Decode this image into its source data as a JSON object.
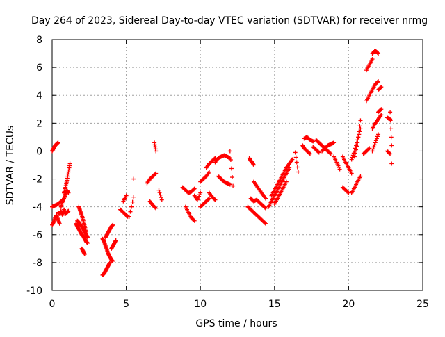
{
  "chart_data": {
    "type": "scatter",
    "title": "Day 264 of 2023, Sidereal Day-to-day VTEC variation (SDTVAR) for receiver nrmg",
    "xlabel": "GPS time / hours",
    "ylabel": "SDTVAR / TECUs",
    "xlim": [
      0,
      25
    ],
    "ylim": [
      -10,
      8
    ],
    "xticks": [
      0,
      5,
      10,
      15,
      20,
      25
    ],
    "yticks": [
      -10,
      -8,
      -6,
      -4,
      -2,
      0,
      2,
      4,
      6,
      8
    ],
    "grid": true,
    "marker": "plus",
    "color": "#ff0000",
    "segments": [
      {
        "x": [
          0.0,
          0.1,
          0.2,
          0.3,
          0.4
        ],
        "y": [
          0.0,
          0.2,
          0.4,
          0.5,
          0.6
        ]
      },
      {
        "x": [
          0.0,
          0.1,
          0.2,
          0.3,
          0.4,
          0.5
        ],
        "y": [
          -5.3,
          -5.1,
          -4.8,
          -4.6,
          -4.9,
          -5.2
        ]
      },
      {
        "x": [
          0.0,
          0.2,
          0.4,
          0.6
        ],
        "y": [
          -4.0,
          -3.9,
          -3.8,
          -3.6
        ]
      },
      {
        "x": [
          0.4,
          0.5,
          0.6,
          0.7,
          0.8,
          0.9,
          1.0,
          1.1
        ],
        "y": [
          -4.4,
          -4.5,
          -4.3,
          -4.6,
          -4.2,
          -4.5,
          -4.4,
          -4.3
        ]
      },
      {
        "x": [
          0.6,
          0.7,
          0.8,
          0.9,
          1.0,
          1.1
        ],
        "y": [
          -4.0,
          -3.6,
          -3.4,
          -3.1,
          -2.8,
          -3.0
        ]
      },
      {
        "x": [
          0.8,
          0.9,
          1.0,
          1.1,
          1.2
        ],
        "y": [
          -3.0,
          -2.6,
          -2.1,
          -1.5,
          -0.9
        ]
      },
      {
        "x": [
          1.6,
          1.7,
          1.8,
          1.9,
          2.0,
          2.1,
          2.2,
          2.3,
          2.4
        ],
        "y": [
          -5.2,
          -5.4,
          -5.6,
          -5.8,
          -6.0,
          -6.1,
          -6.3,
          -6.5,
          -6.6
        ]
      },
      {
        "x": [
          1.7,
          1.8,
          1.9,
          2.0,
          2.1,
          2.2,
          2.3,
          2.4
        ],
        "y": [
          -5.0,
          -5.1,
          -5.3,
          -5.4,
          -5.6,
          -5.8,
          -6.0,
          -6.2
        ]
      },
      {
        "x": [
          1.8,
          1.9,
          2.0,
          2.1,
          2.2,
          2.3
        ],
        "y": [
          -4.0,
          -4.3,
          -4.6,
          -5.0,
          -5.4,
          -5.8
        ]
      },
      {
        "x": [
          2.0,
          2.1,
          2.2
        ],
        "y": [
          -7.0,
          -7.2,
          -7.4
        ]
      },
      {
        "x": [
          3.4,
          3.5,
          3.6,
          3.7,
          3.8,
          3.9
        ],
        "y": [
          -8.9,
          -8.8,
          -8.6,
          -8.4,
          -8.2,
          -8.0
        ]
      },
      {
        "x": [
          3.4,
          3.5,
          3.6,
          3.7,
          3.8,
          3.9,
          4.0,
          4.1
        ],
        "y": [
          -6.3,
          -6.5,
          -6.8,
          -7.1,
          -7.4,
          -7.6,
          -7.8,
          -7.9
        ]
      },
      {
        "x": [
          3.6,
          3.7,
          3.8,
          3.9,
          4.0,
          4.1
        ],
        "y": [
          -6.2,
          -6.0,
          -5.8,
          -5.6,
          -5.4,
          -5.3
        ]
      },
      {
        "x": [
          4.0,
          4.1,
          4.2,
          4.3
        ],
        "y": [
          -7.0,
          -6.8,
          -6.6,
          -6.4
        ]
      },
      {
        "x": [
          4.6,
          4.8,
          5.0,
          5.1
        ],
        "y": [
          -4.2,
          -4.4,
          -4.6,
          -4.7
        ]
      },
      {
        "x": [
          4.8,
          5.0
        ],
        "y": [
          -3.6,
          -3.2
        ]
      },
      {
        "x": [
          5.2,
          5.5
        ],
        "y": [
          -4.7,
          -3.3
        ]
      },
      {
        "x": [
          5.5
        ],
        "y": [
          -2.0
        ]
      },
      {
        "x": [
          6.4,
          6.6,
          6.8,
          7.0
        ],
        "y": [
          -2.3,
          -2.0,
          -1.8,
          -1.6
        ]
      },
      {
        "x": [
          6.6,
          6.8,
          7.0
        ],
        "y": [
          -3.6,
          -3.9,
          -4.1
        ]
      },
      {
        "x": [
          6.9,
          7.0
        ],
        "y": [
          0.6,
          0.0
        ]
      },
      {
        "x": [
          7.2,
          7.4
        ],
        "y": [
          -2.8,
          -3.5
        ]
      },
      {
        "x": [
          8.8,
          9.0,
          9.2,
          9.4,
          9.6
        ],
        "y": [
          -2.6,
          -2.8,
          -3.0,
          -2.9,
          -2.7
        ]
      },
      {
        "x": [
          9.0,
          9.2,
          9.4,
          9.6
        ],
        "y": [
          -4.0,
          -4.4,
          -4.8,
          -5.0
        ]
      },
      {
        "x": [
          9.6,
          9.8,
          10.0
        ],
        "y": [
          -3.2,
          -3.5,
          -3.0
        ]
      },
      {
        "x": [
          10.0,
          10.2,
          10.4,
          10.6
        ],
        "y": [
          -4.0,
          -3.8,
          -3.6,
          -3.4
        ]
      },
      {
        "x": [
          10.0,
          10.2,
          10.4,
          10.6
        ],
        "y": [
          -2.2,
          -2.0,
          -1.8,
          -1.5
        ]
      },
      {
        "x": [
          10.4,
          10.6,
          10.8,
          11.0
        ],
        "y": [
          -1.2,
          -0.9,
          -0.7,
          -0.5
        ]
      },
      {
        "x": [
          10.6,
          10.8,
          11.0
        ],
        "y": [
          -3.0,
          -3.3,
          -3.5
        ]
      },
      {
        "x": [
          11.0,
          11.2,
          11.4,
          11.6,
          11.8,
          12.0
        ],
        "y": [
          -0.8,
          -0.5,
          -0.4,
          -0.3,
          -0.4,
          -0.5
        ]
      },
      {
        "x": [
          11.2,
          11.4,
          11.6,
          11.8,
          12.0
        ],
        "y": [
          -1.8,
          -2.0,
          -2.2,
          -2.3,
          -2.4
        ]
      },
      {
        "x": [
          12.0,
          12.2
        ],
        "y": [
          0.0,
          -2.5
        ]
      },
      {
        "x": [
          13.3,
          13.4,
          13.5,
          13.6
        ],
        "y": [
          -0.5,
          -0.7,
          -0.8,
          -1.0
        ]
      },
      {
        "x": [
          13.2,
          13.4,
          13.6,
          13.8,
          14.0,
          14.2,
          14.4
        ],
        "y": [
          -4.0,
          -4.2,
          -4.4,
          -4.6,
          -4.8,
          -5.0,
          -5.2
        ]
      },
      {
        "x": [
          13.4,
          13.6,
          13.8,
          14.0,
          14.2,
          14.4
        ],
        "y": [
          -3.4,
          -3.6,
          -3.5,
          -3.7,
          -3.9,
          -4.1
        ]
      },
      {
        "x": [
          13.6,
          13.8,
          14.0,
          14.2,
          14.4
        ],
        "y": [
          -2.2,
          -2.5,
          -2.8,
          -3.1,
          -3.4
        ]
      },
      {
        "x": [
          14.6,
          14.8,
          15.0,
          15.2,
          15.4,
          15.6,
          15.8,
          16.0
        ],
        "y": [
          -4.0,
          -3.6,
          -3.2,
          -2.8,
          -2.4,
          -2.0,
          -1.6,
          -1.2
        ]
      },
      {
        "x": [
          14.8,
          15.0,
          15.2,
          15.4,
          15.6,
          15.8,
          16.0,
          16.2
        ],
        "y": [
          -3.2,
          -2.8,
          -2.4,
          -2.0,
          -1.6,
          -1.2,
          -0.9,
          -0.6
        ]
      },
      {
        "x": [
          15.0,
          15.2,
          15.4,
          15.6,
          15.8
        ],
        "y": [
          -3.8,
          -3.4,
          -3.0,
          -2.6,
          -2.2
        ]
      },
      {
        "x": [
          16.4,
          16.6
        ],
        "y": [
          -0.1,
          -1.5
        ]
      },
      {
        "x": [
          16.9,
          17.0,
          17.2,
          17.4
        ],
        "y": [
          0.4,
          0.2,
          0.0,
          -0.2
        ]
      },
      {
        "x": [
          17.0,
          17.2,
          17.4,
          17.6
        ],
        "y": [
          0.9,
          1.0,
          0.8,
          0.7
        ]
      },
      {
        "x": [
          17.6,
          17.8,
          18.0
        ],
        "y": [
          0.3,
          0.1,
          -0.1
        ]
      },
      {
        "x": [
          17.8,
          18.0,
          18.2,
          18.4,
          18.6,
          18.8
        ],
        "y": [
          0.8,
          0.6,
          0.4,
          0.2,
          0.0,
          -0.2
        ]
      },
      {
        "x": [
          18.2,
          18.4,
          18.6,
          18.8,
          19.0
        ],
        "y": [
          0.0,
          0.2,
          0.4,
          0.5,
          0.6
        ]
      },
      {
        "x": [
          19.0,
          19.2,
          19.4
        ],
        "y": [
          -0.4,
          -0.8,
          -1.3
        ]
      },
      {
        "x": [
          19.6,
          19.8,
          20.0,
          20.2
        ],
        "y": [
          -0.4,
          -0.8,
          -1.2,
          -1.6
        ]
      },
      {
        "x": [
          19.6,
          19.8,
          20.0
        ],
        "y": [
          -2.6,
          -2.8,
          -3.0
        ]
      },
      {
        "x": [
          20.2,
          20.4,
          20.6,
          20.8
        ],
        "y": [
          -0.6,
          0.0,
          0.8,
          1.6
        ]
      },
      {
        "x": [
          20.2,
          20.4,
          20.6,
          20.8
        ],
        "y": [
          -3.0,
          -2.6,
          -2.2,
          -1.8
        ]
      },
      {
        "x": [
          20.4,
          20.6,
          20.8
        ],
        "y": [
          -0.4,
          0.6,
          2.2
        ]
      },
      {
        "x": [
          21.0,
          21.2,
          21.4
        ],
        "y": [
          -0.2,
          0.0,
          0.2
        ]
      },
      {
        "x": [
          21.2,
          21.4,
          21.6
        ],
        "y": [
          5.8,
          6.2,
          6.6
        ]
      },
      {
        "x": [
          21.2,
          21.4,
          21.6,
          21.8,
          22.0
        ],
        "y": [
          3.6,
          4.0,
          4.4,
          4.8,
          5.0
        ]
      },
      {
        "x": [
          21.6,
          21.8,
          22.0
        ],
        "y": [
          7.0,
          7.2,
          7.0
        ]
      },
      {
        "x": [
          21.6,
          21.8,
          22.0,
          22.2
        ],
        "y": [
          1.6,
          2.0,
          2.3,
          2.6
        ]
      },
      {
        "x": [
          21.6,
          21.8,
          22.0
        ],
        "y": [
          0.0,
          0.6,
          1.2
        ]
      },
      {
        "x": [
          22.0,
          22.2
        ],
        "y": [
          4.4,
          4.6
        ]
      },
      {
        "x": [
          22.0,
          22.2
        ],
        "y": [
          2.8,
          3.0
        ]
      },
      {
        "x": [
          22.6,
          22.8
        ],
        "y": [
          2.4,
          2.3
        ]
      },
      {
        "x": [
          22.6,
          22.8
        ],
        "y": [
          0.0,
          -0.2
        ]
      },
      {
        "x": [
          22.8,
          22.9
        ],
        "y": [
          2.8,
          0.4
        ]
      },
      {
        "x": [
          22.9
        ],
        "y": [
          -0.9
        ]
      }
    ]
  }
}
